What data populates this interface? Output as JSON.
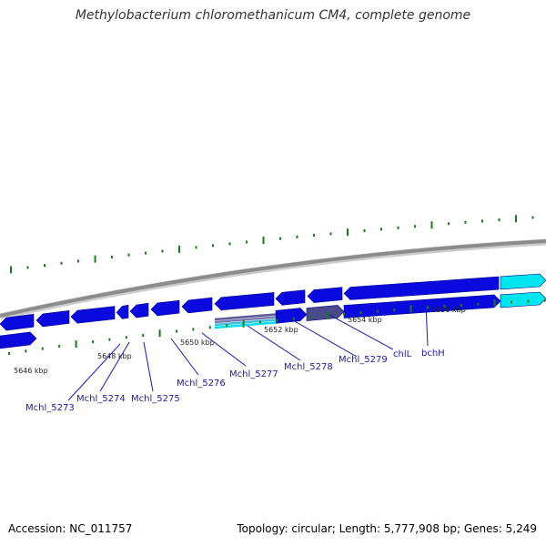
{
  "title": "Methylobacterium chloromethanicum CM4, complete genome",
  "footer": {
    "accession": "Accession: NC_011757",
    "summary": "Topology: circular; Length: 5,777,908 bp; Genes: 5,249"
  },
  "scale_labels": [
    "5646 kbp",
    "5648 kbp",
    "5650 kbp",
    "5652 kbp",
    "5654 kbp",
    "5656 kbp"
  ],
  "gene_labels": [
    "Mchl_5273",
    "Mchl_5274",
    "Mchl_5275",
    "Mchl_5276",
    "Mchl_5277",
    "Mchl_5278",
    "Mchl_5279",
    "chlL",
    "bchH"
  ],
  "colors": {
    "gene": "#0a0adf",
    "gene_edge": "#00008a",
    "highlight": "#00e5f0",
    "backbone": "#8c8c8c",
    "tick": "#1a7a1a",
    "label": "#1a1aa8"
  }
}
